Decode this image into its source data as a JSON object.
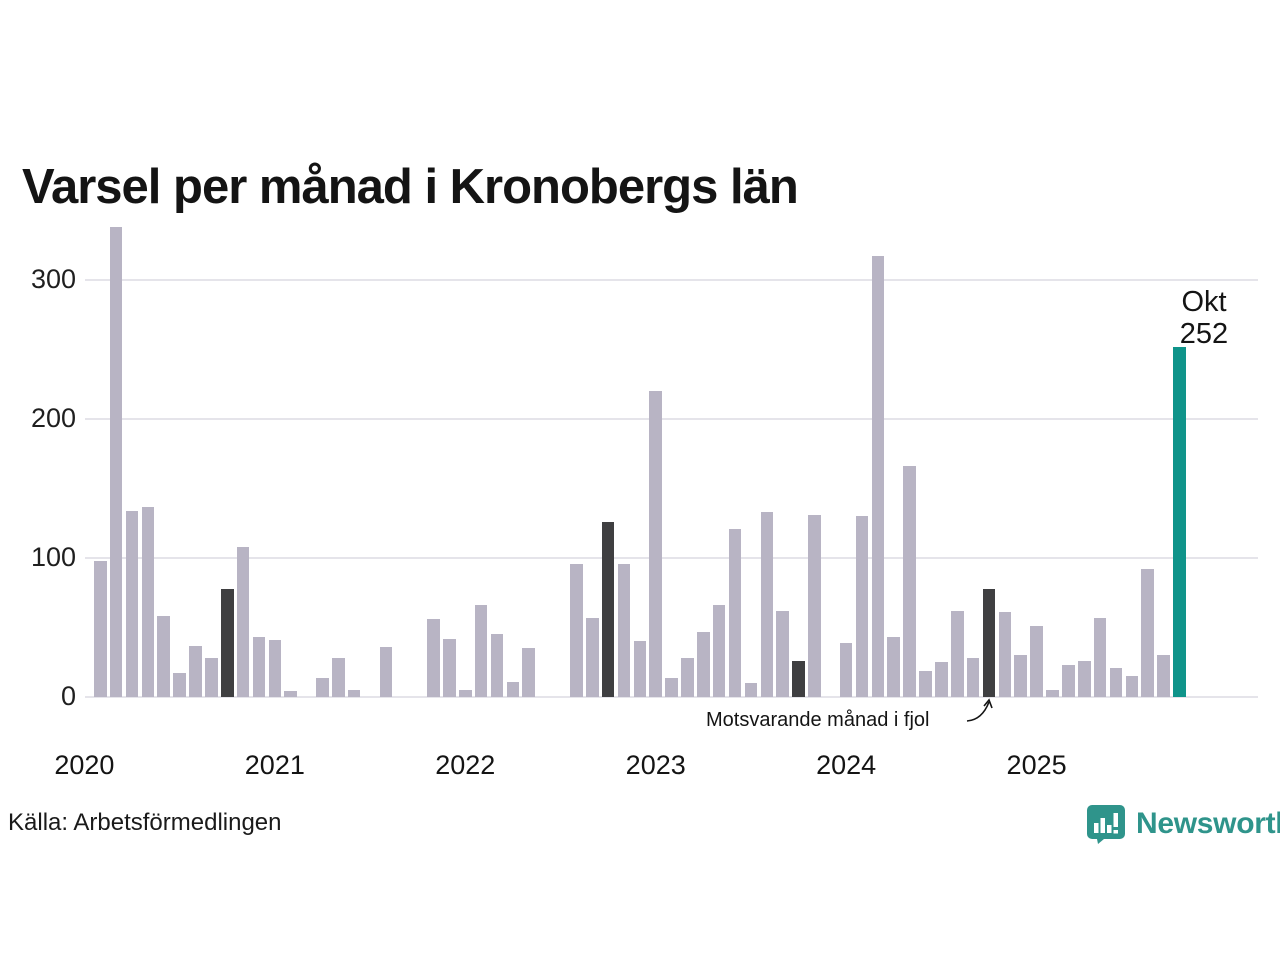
{
  "title": "Varsel per månad i Kronobergs län",
  "source": "Källa: Arbetsförmedlingen",
  "logo": {
    "text": "Newsworthy"
  },
  "chart_data": {
    "type": "bar",
    "title": "Varsel per månad i Kronobergs län",
    "xlabel": "",
    "ylabel": "",
    "yticks": [
      0,
      100,
      200,
      300
    ],
    "ylim": [
      0,
      350
    ],
    "grid": true,
    "legend_position": "none",
    "year_labels": [
      "2020",
      "2021",
      "2022",
      "2023",
      "2024",
      "2025"
    ],
    "annotation": {
      "text": "Motsvarande månad i fjol",
      "points_to": "2024-10"
    },
    "last_point_label": {
      "month": "Okt",
      "value": 252
    },
    "colors": {
      "default": "#b8b4c4",
      "highlight": "#3f3f41",
      "current": "#0f948a"
    },
    "months": [
      {
        "m": "2020-02",
        "v": 98,
        "c": "default"
      },
      {
        "m": "2020-03",
        "v": 338,
        "c": "default"
      },
      {
        "m": "2020-04",
        "v": 134,
        "c": "default"
      },
      {
        "m": "2020-05",
        "v": 137,
        "c": "default"
      },
      {
        "m": "2020-06",
        "v": 58,
        "c": "default"
      },
      {
        "m": "2020-07",
        "v": 17,
        "c": "default"
      },
      {
        "m": "2020-08",
        "v": 37,
        "c": "default"
      },
      {
        "m": "2020-09",
        "v": 28,
        "c": "default"
      },
      {
        "m": "2020-10",
        "v": 78,
        "c": "highlight"
      },
      {
        "m": "2020-11",
        "v": 108,
        "c": "default"
      },
      {
        "m": "2020-12",
        "v": 43,
        "c": "default"
      },
      {
        "m": "2021-01",
        "v": 41,
        "c": "default"
      },
      {
        "m": "2021-02",
        "v": 4,
        "c": "default"
      },
      {
        "m": "2021-03",
        "v": 0,
        "c": "default"
      },
      {
        "m": "2021-04",
        "v": 14,
        "c": "default"
      },
      {
        "m": "2021-05",
        "v": 28,
        "c": "default"
      },
      {
        "m": "2021-06",
        "v": 5,
        "c": "default"
      },
      {
        "m": "2021-07",
        "v": 0,
        "c": "default"
      },
      {
        "m": "2021-08",
        "v": 36,
        "c": "default"
      },
      {
        "m": "2021-09",
        "v": 0,
        "c": "default"
      },
      {
        "m": "2021-10",
        "v": 0,
        "c": "highlight"
      },
      {
        "m": "2021-11",
        "v": 56,
        "c": "default"
      },
      {
        "m": "2021-12",
        "v": 42,
        "c": "default"
      },
      {
        "m": "2022-01",
        "v": 5,
        "c": "default"
      },
      {
        "m": "2022-02",
        "v": 66,
        "c": "default"
      },
      {
        "m": "2022-03",
        "v": 45,
        "c": "default"
      },
      {
        "m": "2022-04",
        "v": 11,
        "c": "default"
      },
      {
        "m": "2022-05",
        "v": 35,
        "c": "default"
      },
      {
        "m": "2022-06",
        "v": 0,
        "c": "default"
      },
      {
        "m": "2022-07",
        "v": 0,
        "c": "default"
      },
      {
        "m": "2022-08",
        "v": 96,
        "c": "default"
      },
      {
        "m": "2022-09",
        "v": 57,
        "c": "default"
      },
      {
        "m": "2022-10",
        "v": 126,
        "c": "highlight"
      },
      {
        "m": "2022-11",
        "v": 96,
        "c": "default"
      },
      {
        "m": "2022-12",
        "v": 40,
        "c": "default"
      },
      {
        "m": "2023-01",
        "v": 220,
        "c": "default"
      },
      {
        "m": "2023-02",
        "v": 14,
        "c": "default"
      },
      {
        "m": "2023-03",
        "v": 28,
        "c": "default"
      },
      {
        "m": "2023-04",
        "v": 47,
        "c": "default"
      },
      {
        "m": "2023-05",
        "v": 66,
        "c": "default"
      },
      {
        "m": "2023-06",
        "v": 121,
        "c": "default"
      },
      {
        "m": "2023-07",
        "v": 10,
        "c": "default"
      },
      {
        "m": "2023-08",
        "v": 133,
        "c": "default"
      },
      {
        "m": "2023-09",
        "v": 62,
        "c": "default"
      },
      {
        "m": "2023-10",
        "v": 26,
        "c": "highlight"
      },
      {
        "m": "2023-11",
        "v": 131,
        "c": "default"
      },
      {
        "m": "2023-12",
        "v": 0,
        "c": "default"
      },
      {
        "m": "2024-01",
        "v": 39,
        "c": "default"
      },
      {
        "m": "2024-02",
        "v": 130,
        "c": "default"
      },
      {
        "m": "2024-03",
        "v": 317,
        "c": "default"
      },
      {
        "m": "2024-04",
        "v": 43,
        "c": "default"
      },
      {
        "m": "2024-05",
        "v": 166,
        "c": "default"
      },
      {
        "m": "2024-06",
        "v": 19,
        "c": "default"
      },
      {
        "m": "2024-07",
        "v": 25,
        "c": "default"
      },
      {
        "m": "2024-08",
        "v": 62,
        "c": "default"
      },
      {
        "m": "2024-09",
        "v": 28,
        "c": "default"
      },
      {
        "m": "2024-10",
        "v": 78,
        "c": "highlight"
      },
      {
        "m": "2024-11",
        "v": 61,
        "c": "default"
      },
      {
        "m": "2024-12",
        "v": 30,
        "c": "default"
      },
      {
        "m": "2025-01",
        "v": 51,
        "c": "default"
      },
      {
        "m": "2025-02",
        "v": 5,
        "c": "default"
      },
      {
        "m": "2025-03",
        "v": 23,
        "c": "default"
      },
      {
        "m": "2025-04",
        "v": 26,
        "c": "default"
      },
      {
        "m": "2025-05",
        "v": 57,
        "c": "default"
      },
      {
        "m": "2025-06",
        "v": 21,
        "c": "default"
      },
      {
        "m": "2025-07",
        "v": 15,
        "c": "default"
      },
      {
        "m": "2025-08",
        "v": 92,
        "c": "default"
      },
      {
        "m": "2025-09",
        "v": 30,
        "c": "default"
      },
      {
        "m": "2025-10",
        "v": 252,
        "c": "current"
      }
    ]
  }
}
